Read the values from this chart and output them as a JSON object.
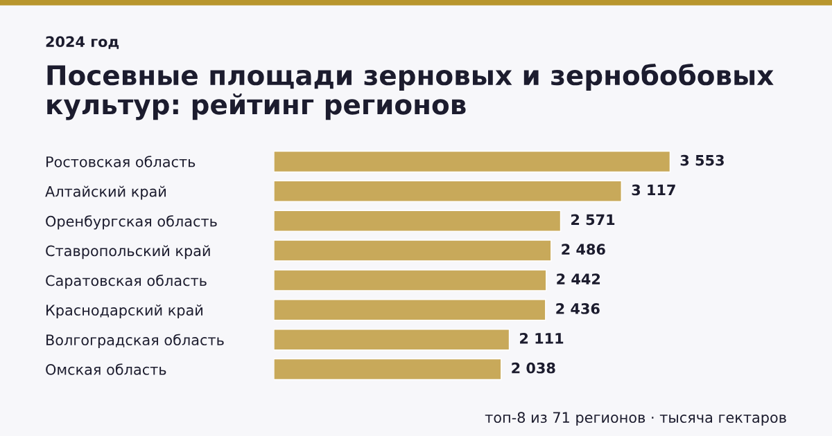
{
  "chart_data": {
    "type": "bar",
    "orientation": "horizontal",
    "subtitle": "2024 год",
    "title": "Посевные площади зерновых и зернобобовых\nкультур: рейтинг регионов",
    "categories": [
      "Ростовская область",
      "Алтайский край",
      "Оренбургская область",
      "Ставропольский край",
      "Саратовская область",
      "Краснодарский край",
      "Волгоградская область",
      "Омская область"
    ],
    "values": [
      3553,
      3117,
      2571,
      2486,
      2442,
      2436,
      2111,
      2038
    ],
    "color": "#c8a95a",
    "data_labels": true,
    "tick_labels": "y",
    "grid": false,
    "legend": false,
    "annotations": [
      "топ-8 из 71 регионов · тысяча гектаров"
    ]
  }
}
